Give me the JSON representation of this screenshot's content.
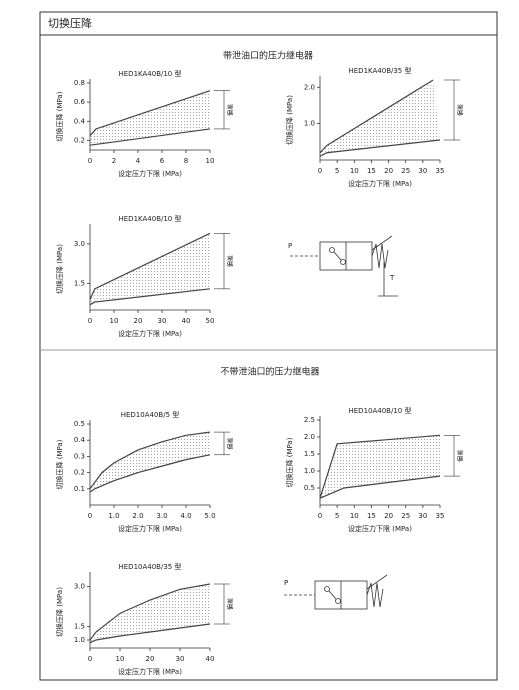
{
  "header": {
    "title": "切换压降"
  },
  "sections": [
    {
      "title": "带泄油口的压力继电器",
      "symbol": {
        "p": "P",
        "t": "T"
      }
    },
    {
      "title": "不带泄油口的压力继电器",
      "symbol": {
        "p": "P"
      }
    }
  ],
  "chart_data": [
    {
      "type": "line",
      "title": "HED1KA40B/10 型",
      "xlabel": "设定压力下限 (MPa)",
      "ylabel": "切换压降 (MPa)",
      "annotation": "偏差",
      "xlim": [
        0,
        10
      ],
      "xticks": [
        0,
        2,
        4,
        6,
        8,
        10
      ],
      "ylim": [
        0.1,
        0.8
      ],
      "yticks": [
        0.2,
        0.4,
        0.6,
        0.8
      ],
      "series": [
        {
          "color": "#444444",
          "x": [
            0,
            0.5,
            10
          ],
          "values": [
            0.25,
            0.32,
            0.72
          ]
        },
        {
          "color": "#444444",
          "x": [
            0,
            10
          ],
          "values": [
            0.15,
            0.32
          ]
        }
      ]
    },
    {
      "type": "line",
      "title": "HED1KA40B/35 型",
      "xlabel": "设定压力下限 (MPa)",
      "ylabel": "切换压降 (MPa)",
      "annotation": "偏差",
      "xlim": [
        0,
        35
      ],
      "xticks": [
        0,
        5,
        10,
        15,
        20,
        25,
        30,
        35
      ],
      "ylim": [
        0,
        2.2
      ],
      "yticks": [
        {
          "value": 1,
          "label": "1.0"
        },
        {
          "value": 2,
          "label": "2.0"
        }
      ],
      "series": [
        {
          "color": "#444444",
          "x": [
            0,
            2,
            33
          ],
          "values": [
            0.2,
            0.4,
            2.2
          ]
        },
        {
          "color": "#444444",
          "x": [
            0,
            2,
            35
          ],
          "values": [
            0.1,
            0.2,
            0.55
          ]
        }
      ]
    },
    {
      "type": "line",
      "title": "HED1KA40B/10 型",
      "xlabel": "设定压力下限 (MPa)",
      "ylabel": "切换压降 (MPa)",
      "annotation": "偏差",
      "xlim": [
        0,
        50
      ],
      "xticks": [
        0,
        10,
        20,
        30,
        40,
        50
      ],
      "ylim": [
        0.5,
        3.6
      ],
      "yticks": [
        1.5,
        {
          "value": 3,
          "label": "3.0"
        }
      ],
      "series": [
        {
          "color": "#444444",
          "x": [
            0,
            2,
            50
          ],
          "values": [
            0.9,
            1.3,
            3.4
          ]
        },
        {
          "color": "#444444",
          "x": [
            0,
            2,
            50
          ],
          "values": [
            0.7,
            0.8,
            1.3
          ]
        }
      ]
    },
    {
      "type": "line",
      "title": "HED10A40B/5 型",
      "xlabel": "设定压力下限 (MPa)",
      "ylabel": "切换压降 (MPa)",
      "annotation": "偏差",
      "xlim": [
        0,
        5
      ],
      "xticks": [
        0,
        {
          "value": 1,
          "label": "1.0"
        },
        {
          "value": 2,
          "label": "2.0"
        },
        {
          "value": 3,
          "label": "3.0"
        },
        {
          "value": 4,
          "label": "4.0"
        },
        {
          "value": 5,
          "label": "5.0"
        }
      ],
      "ylim": [
        0,
        0.5
      ],
      "yticks": [
        0.1,
        0.2,
        0.3,
        0.4,
        0.5
      ],
      "series": [
        {
          "color": "#444444",
          "x": [
            0,
            0.5,
            1,
            2,
            3,
            4,
            5
          ],
          "values": [
            0.1,
            0.2,
            0.26,
            0.34,
            0.39,
            0.43,
            0.45
          ]
        },
        {
          "color": "#444444",
          "x": [
            0,
            0.2,
            1,
            2,
            3,
            4,
            5
          ],
          "values": [
            0.08,
            0.1,
            0.15,
            0.2,
            0.24,
            0.28,
            0.31
          ]
        }
      ]
    },
    {
      "type": "line",
      "title": "HED10A40B/10 型",
      "xlabel": "设定压力下限 (MPa)",
      "ylabel": "切换压降 (MPa)",
      "annotation": "偏差",
      "xlim": [
        0,
        35
      ],
      "xticks": [
        0,
        5,
        10,
        15,
        20,
        25,
        30,
        35
      ],
      "ylim": [
        0,
        2.5
      ],
      "yticks": [
        0.5,
        {
          "value": 1,
          "label": "1.0"
        },
        1.5,
        {
          "value": 2,
          "label": "2.0"
        },
        2.5
      ],
      "series": [
        {
          "color": "#444444",
          "x": [
            0,
            5,
            35
          ],
          "values": [
            0.2,
            1.8,
            2.05
          ]
        },
        {
          "color": "#444444",
          "x": [
            0,
            7,
            35
          ],
          "values": [
            0.2,
            0.5,
            0.85
          ]
        }
      ]
    },
    {
      "type": "line",
      "title": "HED10A40B/35 型",
      "xlabel": "设定压力下限 (MPa)",
      "ylabel": "切换压降 (MPa)",
      "annotation": "偏差",
      "xlim": [
        0,
        40
      ],
      "xticks": [
        0,
        10,
        20,
        30,
        40
      ],
      "ylim": [
        0.7,
        3.4
      ],
      "yticks": [
        {
          "value": 1,
          "label": "1.0"
        },
        1.5,
        {
          "value": 3,
          "label": "3.0"
        }
      ],
      "series": [
        {
          "color": "#444444",
          "x": [
            0,
            2,
            10,
            20,
            30,
            40
          ],
          "values": [
            1.0,
            1.3,
            2.0,
            2.5,
            2.9,
            3.1
          ]
        },
        {
          "color": "#444444",
          "x": [
            0,
            2,
            10,
            20,
            30,
            40
          ],
          "values": [
            0.9,
            1.0,
            1.15,
            1.3,
            1.45,
            1.6
          ]
        }
      ]
    }
  ]
}
